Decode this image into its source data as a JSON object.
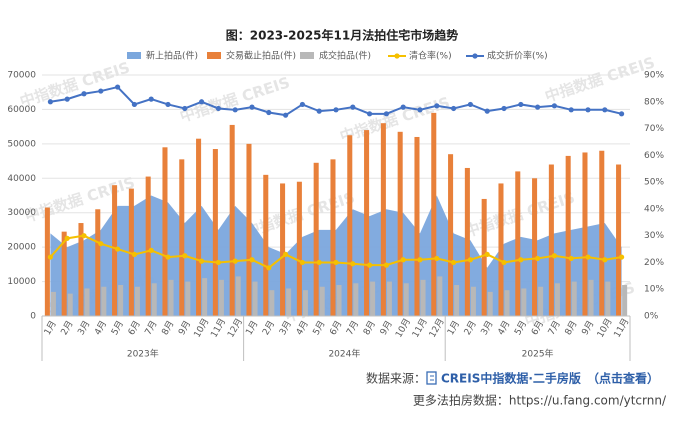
{
  "chart_data": {
    "type": "combo",
    "title": "图：2023-2025年11月法拍住宅市场趋势",
    "watermark": "中指数据 CREIS",
    "categories": [
      "1月",
      "2月",
      "3月",
      "4月",
      "5月",
      "6月",
      "7月",
      "8月",
      "9月",
      "10月",
      "11月",
      "12月",
      "1月",
      "2月",
      "3月",
      "4月",
      "5月",
      "6月",
      "7月",
      "8月",
      "9月",
      "10月",
      "11月",
      "12月",
      "1月",
      "2月",
      "3月",
      "4月",
      "5月",
      "6月",
      "7月",
      "8月",
      "9月",
      "10月",
      "11月"
    ],
    "year_groups": [
      {
        "label": "2023年",
        "count": 12
      },
      {
        "label": "2024年",
        "count": 12
      },
      {
        "label": "2025年",
        "count": 11
      }
    ],
    "series": [
      {
        "name": "新上拍品(件)",
        "kind": "area",
        "color": "#7ba7dd",
        "values": [
          24000,
          20000,
          22000,
          25000,
          32000,
          32000,
          35000,
          33000,
          27000,
          32000,
          25000,
          32000,
          27000,
          20000,
          18000,
          23000,
          25000,
          25000,
          31000,
          29000,
          31000,
          30000,
          24000,
          35000,
          24000,
          22000,
          14000,
          21000,
          23000,
          22000,
          24000,
          25000,
          26000,
          27000,
          20000
        ]
      },
      {
        "name": "交易截止拍品(件)",
        "kind": "bar",
        "color": "#e8803a",
        "values": [
          31500,
          24500,
          27000,
          31000,
          38000,
          37000,
          40500,
          49000,
          45500,
          51500,
          48500,
          55500,
          50000,
          41000,
          38500,
          39000,
          44500,
          45500,
          52500,
          54000,
          56000,
          53500,
          52000,
          59000,
          47000,
          43000,
          34000,
          38500,
          42000,
          40000,
          44000,
          46500,
          47500,
          48000,
          44000
        ]
      },
      {
        "name": "成交拍品(件)",
        "kind": "bar",
        "color": "#b8b8b8",
        "values": [
          7000,
          6500,
          8000,
          8500,
          9000,
          8500,
          9500,
          10500,
          10000,
          11000,
          10500,
          11500,
          10000,
          7500,
          8000,
          7500,
          8500,
          9000,
          9500,
          10000,
          10000,
          9500,
          10500,
          11500,
          9000,
          8500,
          7000,
          7500,
          8000,
          8500,
          9500,
          10000,
          10500,
          10000,
          9000
        ]
      },
      {
        "name": "清仓率(%)",
        "kind": "line",
        "axis": "y2",
        "color": "#f5c000",
        "values": [
          22,
          29,
          30,
          27,
          25,
          23,
          24.5,
          22,
          22.5,
          20.5,
          20,
          20.5,
          21,
          18,
          23,
          20,
          20,
          20,
          19.5,
          19,
          19,
          21,
          21,
          21.5,
          20,
          21,
          23,
          20,
          21,
          21.5,
          22.5,
          21.5,
          22,
          21,
          22
        ]
      },
      {
        "name": "成交折价率(%)",
        "kind": "line",
        "axis": "y2",
        "color": "#4472c4",
        "values": [
          80,
          81,
          83,
          84,
          85.5,
          79,
          81,
          79,
          77.5,
          80,
          77.5,
          77,
          78,
          76,
          75,
          79,
          76.5,
          77,
          78,
          75.5,
          75.5,
          78,
          77,
          78.5,
          77.5,
          79,
          76.5,
          77.5,
          79,
          78,
          78.5,
          77,
          77,
          77,
          75.5
        ]
      }
    ],
    "ylim": [
      0,
      70000
    ],
    "yticks": [
      0,
      10000,
      20000,
      30000,
      40000,
      50000,
      60000,
      70000
    ],
    "y2lim": [
      0,
      90
    ],
    "y2ticks": [
      {
        "value": 0,
        "label": "0%"
      },
      {
        "value": 10,
        "label": "10%"
      },
      {
        "value": 20,
        "label": "20%"
      },
      {
        "value": 30,
        "label": "30%"
      },
      {
        "value": 40,
        "label": "40%"
      },
      {
        "value": 50,
        "label": "50%"
      },
      {
        "value": 60,
        "label": "60%"
      },
      {
        "value": 70,
        "label": "70%"
      },
      {
        "value": 80,
        "label": "80%"
      },
      {
        "value": 90,
        "label": "90%"
      }
    ],
    "grid": true,
    "footer": {
      "source_label": "数据来源：",
      "source_brand": "CREIS中指数据·二手房版",
      "source_link": "（点击查看）",
      "more_label": "更多法拍房数据：https://u.fang.com/ytcrnn/"
    }
  }
}
